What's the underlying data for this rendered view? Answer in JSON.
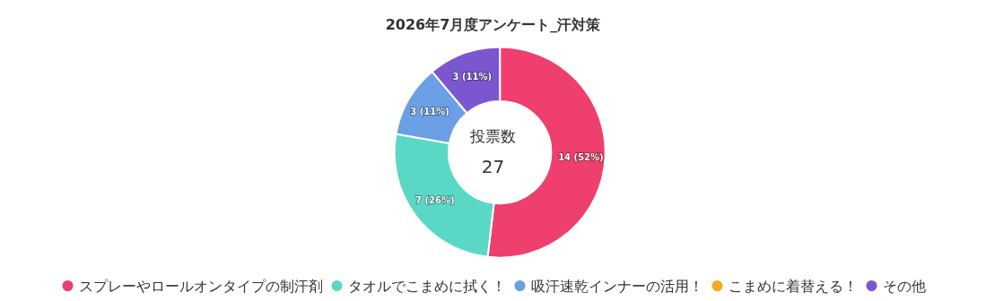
{
  "chart_data": {
    "type": "donut",
    "title": "2026年7月度アンケート_汗対策",
    "categories": [
      "スプレーやロールオンタイプの制汗剤",
      "タオルでこまめに拭く！",
      "吸汗速乾インナーの活用！",
      "こまめに着替える！",
      "その他"
    ],
    "values": [
      14,
      7,
      3,
      0,
      3
    ],
    "colors": [
      "#ee3f6e",
      "#5ad8c5",
      "#6ba0e6",
      "#f5a91f",
      "#7b57cf"
    ],
    "value_labels": [
      "14 (52%)",
      "7 (26%)",
      "3 (11%)",
      null,
      "3 (11%)"
    ],
    "annotations": [
      "投票数",
      "27"
    ],
    "legend": "bottom"
  }
}
